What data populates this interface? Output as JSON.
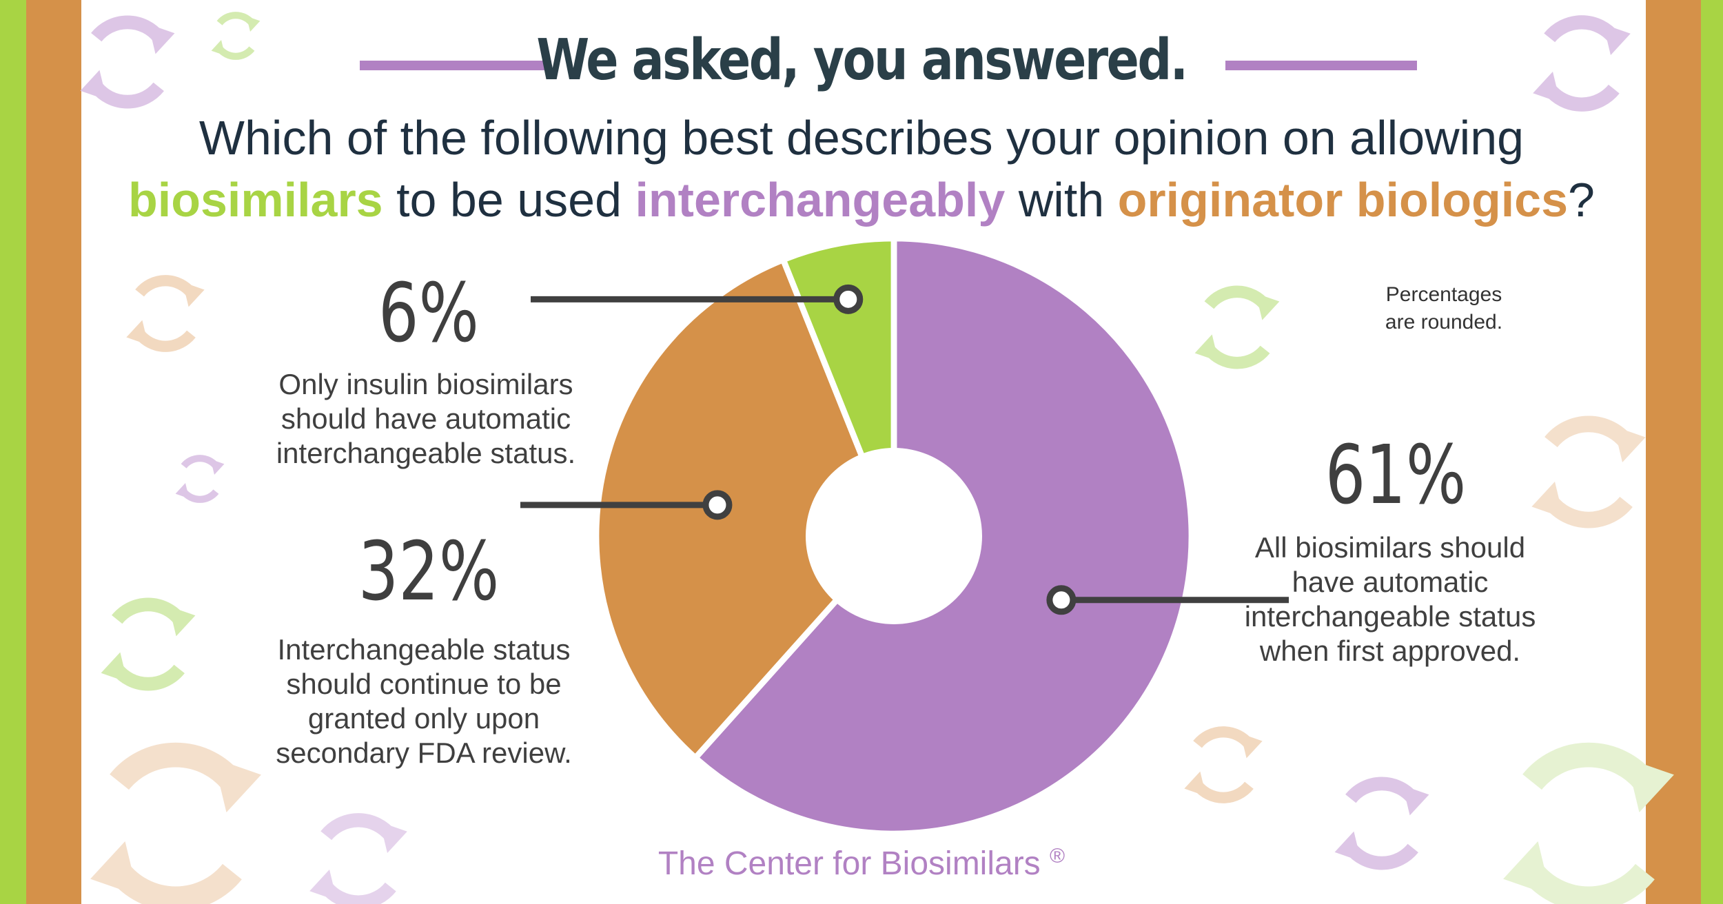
{
  "header": {
    "title": "We asked, you answered.",
    "question_line1": "Which of the following best describes your opinion on allowing",
    "question_kw1": "biosimilars",
    "question_mid1": " to be used ",
    "question_kw2": "interchangeably",
    "question_mid2": " with ",
    "question_kw3": "originator biologics",
    "question_end": "?"
  },
  "colors": {
    "purple": "#b181c3",
    "orange": "#d59149",
    "green": "#a8d444",
    "text": "#3f3f3f",
    "title": "#2a3f48"
  },
  "note": {
    "line1": "Percentages",
    "line2": "are rounded."
  },
  "footer": {
    "brand": "The Center for Biosimilars",
    "mark": "®"
  },
  "chart_data": {
    "type": "pie",
    "style": "donut",
    "categories": [
      "All biosimilars should have automatic interchangeable status when first approved.",
      "Interchangeable status should continue to be granted only upon secondary FDA review.",
      "Only insulin biosimilars should have automatic interchangeable status."
    ],
    "values": [
      61,
      32,
      6
    ],
    "value_labels": [
      "61%",
      "32%",
      "6%"
    ],
    "colors": [
      "#b181c3",
      "#d59149",
      "#a8d444"
    ],
    "labels": [
      {
        "pct": "61%",
        "lines": [
          "All biosimilars should",
          "have automatic",
          "interchangeable status",
          "when first approved."
        ]
      },
      {
        "pct": "32%",
        "lines": [
          "Interchangeable status",
          "should continue to be",
          "granted only upon",
          "secondary FDA review."
        ]
      },
      {
        "pct": "6%",
        "lines": [
          "Only insulin biosimilars",
          "should have automatic",
          "interchangeable status."
        ]
      }
    ]
  }
}
